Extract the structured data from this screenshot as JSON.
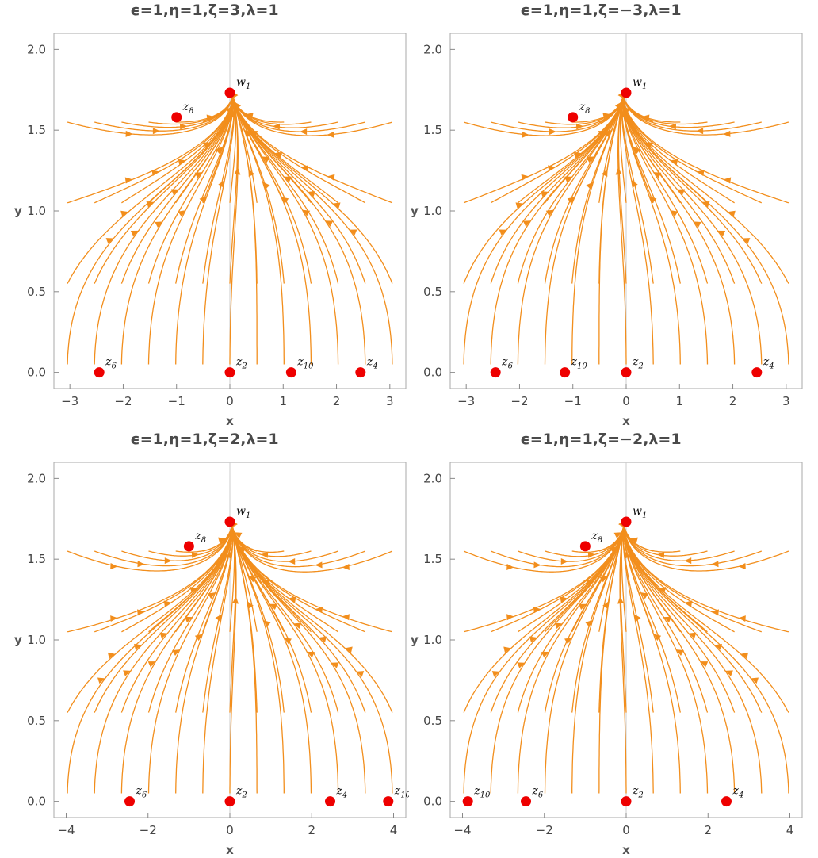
{
  "chart_data": [
    {
      "type": "stream",
      "title": "ϵ=1,η=1,ζ=3,λ=1",
      "xlabel": "x",
      "ylabel": "y",
      "xlim": [
        -3.3,
        3.3
      ],
      "ylim": [
        -0.1,
        2.1
      ],
      "xticks": [
        -3,
        -2,
        -1,
        0,
        1,
        2,
        3
      ],
      "yticks": [
        0.0,
        0.5,
        1.0,
        1.5,
        2.0
      ],
      "points": [
        {
          "name": "w",
          "sub": "1",
          "x": 0,
          "y": 1.732
        },
        {
          "name": "z",
          "sub": "8",
          "x": -1.0,
          "y": 1.58
        },
        {
          "name": "z",
          "sub": "6",
          "x": -2.45,
          "y": 0
        },
        {
          "name": "z",
          "sub": "2",
          "x": 0,
          "y": 0
        },
        {
          "name": "z",
          "sub": "10",
          "x": 1.15,
          "y": 0
        },
        {
          "name": "z",
          "sub": "4",
          "x": 2.45,
          "y": 0
        }
      ]
    },
    {
      "type": "stream",
      "title": "ϵ=1,η=1,ζ=−3,λ=1",
      "xlabel": "x",
      "ylabel": "y",
      "xlim": [
        -3.3,
        3.3
      ],
      "ylim": [
        -0.1,
        2.1
      ],
      "xticks": [
        -3,
        -2,
        -1,
        0,
        1,
        2,
        3
      ],
      "yticks": [
        0.0,
        0.5,
        1.0,
        1.5,
        2.0
      ],
      "points": [
        {
          "name": "w",
          "sub": "1",
          "x": 0,
          "y": 1.732
        },
        {
          "name": "z",
          "sub": "8",
          "x": -1.0,
          "y": 1.58
        },
        {
          "name": "z",
          "sub": "6",
          "x": -2.45,
          "y": 0
        },
        {
          "name": "z",
          "sub": "10",
          "x": -1.15,
          "y": 0
        },
        {
          "name": "z",
          "sub": "2",
          "x": 0,
          "y": 0
        },
        {
          "name": "z",
          "sub": "4",
          "x": 2.45,
          "y": 0
        }
      ]
    },
    {
      "type": "stream",
      "title": "ϵ=1,η=1,ζ=2,λ=1",
      "xlabel": "x",
      "ylabel": "y",
      "xlim": [
        -4.3,
        4.3
      ],
      "ylim": [
        -0.1,
        2.1
      ],
      "xticks": [
        -4,
        -2,
        0,
        2,
        4
      ],
      "yticks": [
        0.0,
        0.5,
        1.0,
        1.5,
        2.0
      ],
      "points": [
        {
          "name": "w",
          "sub": "1",
          "x": 0,
          "y": 1.732
        },
        {
          "name": "z",
          "sub": "8",
          "x": -1.0,
          "y": 1.58
        },
        {
          "name": "z",
          "sub": "6",
          "x": -2.45,
          "y": 0
        },
        {
          "name": "z",
          "sub": "2",
          "x": 0,
          "y": 0
        },
        {
          "name": "z",
          "sub": "4",
          "x": 2.45,
          "y": 0
        },
        {
          "name": "z",
          "sub": "10",
          "x": 3.87,
          "y": 0
        }
      ]
    },
    {
      "type": "stream",
      "title": "ϵ=1,η=1,ζ=−2,λ=1",
      "xlabel": "x",
      "ylabel": "y",
      "xlim": [
        -4.3,
        4.3
      ],
      "ylim": [
        -0.1,
        2.1
      ],
      "xticks": [
        -4,
        -2,
        0,
        2,
        4
      ],
      "yticks": [
        0.0,
        0.5,
        1.0,
        1.5,
        2.0
      ],
      "points": [
        {
          "name": "w",
          "sub": "1",
          "x": 0,
          "y": 1.732
        },
        {
          "name": "z",
          "sub": "8",
          "x": -1.0,
          "y": 1.58
        },
        {
          "name": "z",
          "sub": "10",
          "x": -3.87,
          "y": 0
        },
        {
          "name": "z",
          "sub": "6",
          "x": -2.45,
          "y": 0
        },
        {
          "name": "z",
          "sub": "2",
          "x": 0,
          "y": 0
        },
        {
          "name": "z",
          "sub": "4",
          "x": 2.45,
          "y": 0
        }
      ]
    }
  ],
  "colors": {
    "stream": "#f28e1c",
    "point": "#ee0000",
    "frame": "#aaaaaa",
    "axis_zero": "#cccccc"
  }
}
